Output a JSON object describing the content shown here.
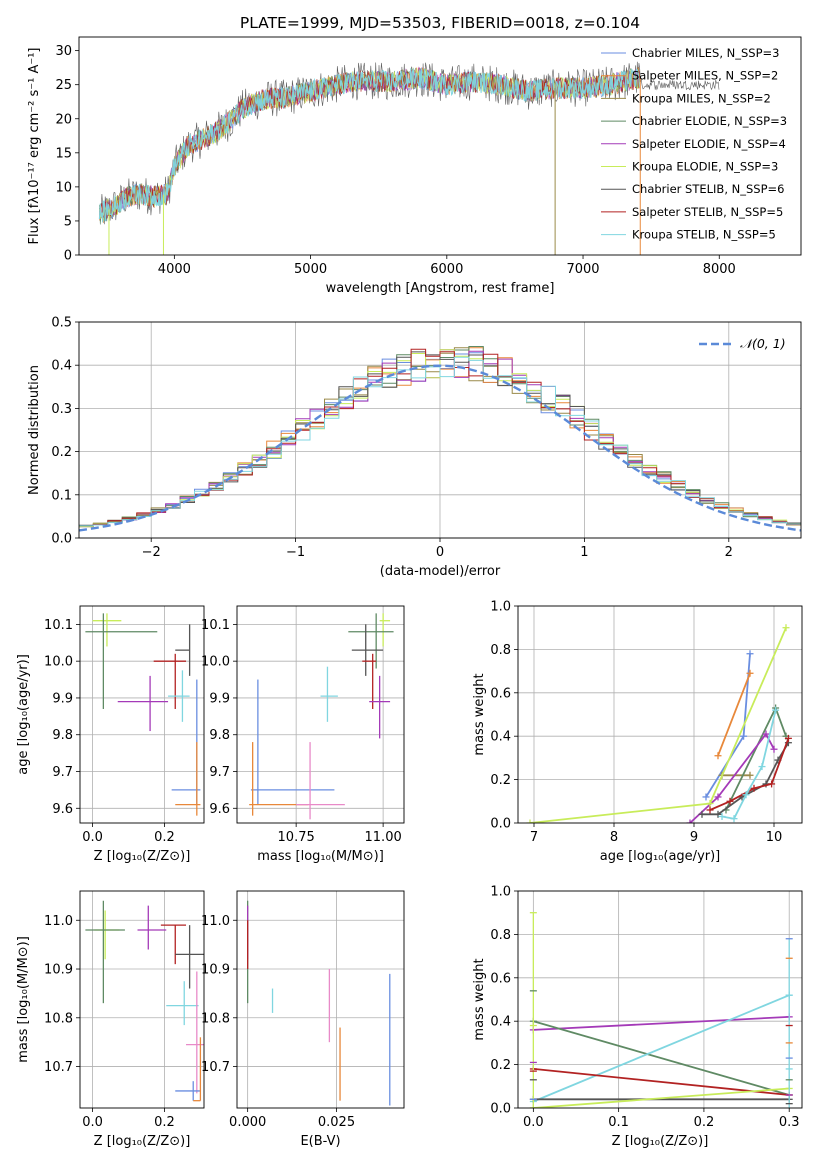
{
  "colors": {
    "chabrier_miles": "#6a8ee0",
    "salpeter_miles": "#e8883a",
    "kroupa_miles": "#9a8a4a",
    "chabrier_elodie": "#5f8a64",
    "salpeter_elodie": "#a43ab8",
    "kroupa_elodie": "#c8ec5a",
    "chabrier_stelib": "#555555",
    "salpeter_stelib": "#b22222",
    "kroupa_stelib": "#80d6e0",
    "normal": "#5b8ad8",
    "grid": "#b0b0b0",
    "extra_pink": "#e88ac8"
  },
  "chart_data": [
    {
      "id": "spectrum",
      "type": "line",
      "title": "PLATE=1999, MJD=53503, FIBERID=0018, z=0.104",
      "xlabel": "wavelength [Angstrom, rest frame]",
      "ylabel": "Flux [fλ10⁻¹⁷ erg cm⁻² s⁻¹ A⁻¹]",
      "xlim": [
        3300,
        8600
      ],
      "ylim": [
        0,
        32
      ],
      "xticks": [
        4000,
        5000,
        6000,
        7000,
        8000
      ],
      "yticks": [
        0,
        5,
        10,
        15,
        20,
        25,
        30
      ],
      "grid": false,
      "legend_position": "right",
      "legend": [
        "Chabrier MILES, N_SSP=3",
        "Salpeter MILES, N_SSP=2",
        "Kroupa MILES, N_SSP=2",
        "Chabrier ELODIE, N_SSP=3",
        "Salpeter ELODIE, N_SSP=4",
        "Kroupa ELODIE, N_SSP=3",
        "Chabrier STELIB, N_SSP=6",
        "Salpeter STELIB, N_SSP=5",
        "Kroupa STELIB, N_SSP=5"
      ],
      "continuum": {
        "x": [
          3450,
          3550,
          3650,
          3750,
          3850,
          3950,
          4000,
          4100,
          4200,
          4300,
          4400,
          4500,
          4600,
          4700,
          4800,
          4900,
          5000,
          5100,
          5200,
          5300,
          5400,
          5600,
          5800,
          6000,
          6200,
          6400,
          6600,
          6800,
          7000,
          7200,
          7400
        ],
        "y": [
          6,
          7,
          8.5,
          9,
          8.5,
          9,
          13,
          16,
          17,
          18,
          19.5,
          21.5,
          22.5,
          23,
          23,
          23.5,
          24,
          24.5,
          25,
          25.5,
          25.5,
          25.5,
          26,
          25,
          25.5,
          25,
          24,
          24.5,
          24.5,
          25,
          26
        ]
      },
      "spikes": [
        {
          "x": 3520,
          "y": 0
        },
        {
          "x": 3920,
          "y": 0
        },
        {
          "x": 6795,
          "y": 0
        },
        {
          "x": 7420,
          "y": 0
        }
      ]
    },
    {
      "id": "residual_histogram",
      "type": "line",
      "xlabel": "(data-model)/error",
      "ylabel": "Normed distribution",
      "xlim": [
        -2.5,
        2.5
      ],
      "ylim": [
        0,
        0.5
      ],
      "xticks": [
        -2,
        -1,
        0,
        1,
        2
      ],
      "xticklabels": [
        "−2",
        "−1",
        "0",
        "1",
        "2"
      ],
      "yticks": [
        0.0,
        0.1,
        0.2,
        0.3,
        0.4,
        0.5
      ],
      "grid": true,
      "legend": [
        "𝒩(0, 1)"
      ],
      "legend_position": "top-right",
      "bin_width": 0.1
    },
    {
      "id": "age_vs_Z",
      "type": "scatter",
      "xlabel": "Z [log₁₀(Z/Z⊙)]",
      "ylabel": "age  [log₁₀(age/yr)]",
      "xlim": [
        -0.035,
        0.31
      ],
      "ylim": [
        9.56,
        10.15
      ],
      "xticks": [
        0.0,
        0.2
      ],
      "yticks": [
        9.6,
        9.7,
        9.8,
        9.9,
        10.0,
        10.1
      ],
      "grid": true
    },
    {
      "id": "age_vs_mass",
      "type": "scatter",
      "xlabel": "mass [log₁₀(M/M⊙)]",
      "xlim": [
        10.58,
        11.06
      ],
      "ylim": [
        9.56,
        10.15
      ],
      "xticks": [
        10.75,
        11.0
      ],
      "yticks": [
        9.6,
        9.7,
        9.8,
        9.9,
        10.0,
        10.1
      ],
      "grid": true
    },
    {
      "id": "weight_vs_age",
      "type": "line",
      "xlabel": "age  [log₁₀(age/yr)]",
      "ylabel": "mass weight",
      "xlim": [
        6.8,
        10.35
      ],
      "ylim": [
        0,
        1
      ],
      "xticks": [
        7,
        8,
        9,
        10
      ],
      "yticks": [
        0.0,
        0.2,
        0.4,
        0.6,
        0.8,
        1.0
      ],
      "grid": true,
      "series": [
        {
          "name": "Chabrier MILES",
          "color_key": "chabrier_miles",
          "x": [
            9.15,
            9.62,
            9.7
          ],
          "y": [
            0.12,
            0.4,
            0.78
          ]
        },
        {
          "name": "Salpeter MILES",
          "color_key": "salpeter_miles",
          "x": [
            9.3,
            9.7
          ],
          "y": [
            0.31,
            0.69
          ]
        },
        {
          "name": "Kroupa MILES",
          "color_key": "kroupa_miles",
          "x": [
            9.35,
            9.7
          ],
          "y": [
            0.22,
            0.22
          ]
        },
        {
          "name": "Chabrier ELODIE",
          "color_key": "chabrier_elodie",
          "x": [
            9.4,
            10.02,
            10.15
          ],
          "y": [
            0.06,
            0.53,
            0.4
          ]
        },
        {
          "name": "Salpeter ELODIE",
          "color_key": "salpeter_elodie",
          "x": [
            8.95,
            9.3,
            9.9,
            10.0
          ],
          "y": [
            0.0,
            0.12,
            0.41,
            0.34
          ]
        },
        {
          "name": "Kroupa ELODIE",
          "color_key": "kroupa_elodie",
          "x": [
            6.95,
            9.2,
            10.15
          ],
          "y": [
            0.0,
            0.09,
            0.9
          ]
        },
        {
          "name": "Chabrier STELIB",
          "color_key": "chabrier_stelib",
          "x": [
            9.1,
            9.3,
            9.6,
            9.9,
            10.05,
            10.18
          ],
          "y": [
            0.04,
            0.04,
            0.12,
            0.18,
            0.29,
            0.37
          ]
        },
        {
          "name": "Salpeter STELIB",
          "color_key": "salpeter_stelib",
          "x": [
            9.2,
            9.45,
            9.75,
            9.97,
            10.18
          ],
          "y": [
            0.06,
            0.1,
            0.16,
            0.18,
            0.39
          ]
        },
        {
          "name": "Kroupa STELIB",
          "color_key": "kroupa_stelib",
          "x": [
            9.35,
            9.5,
            9.65,
            9.85,
            10.02
          ],
          "y": [
            0.03,
            0.02,
            0.13,
            0.26,
            0.52
          ]
        }
      ]
    },
    {
      "id": "mass_vs_Z",
      "type": "scatter",
      "xlabel": "Z [log₁₀(Z/Z⊙)]",
      "ylabel": "mass [log₁₀(M/M⊙)]",
      "xlim": [
        -0.035,
        0.31
      ],
      "ylim": [
        10.615,
        11.06
      ],
      "xticks": [
        0.0,
        0.2
      ],
      "yticks": [
        10.7,
        10.8,
        10.9,
        11.0
      ],
      "grid": true
    },
    {
      "id": "mass_vs_EBV",
      "type": "scatter",
      "xlabel": "E(B-V)",
      "xlim": [
        -0.003,
        0.044
      ],
      "ylim": [
        10.615,
        11.06
      ],
      "xticks": [
        0.0,
        0.025
      ],
      "xticklabels": [
        "0.000",
        "0.025"
      ],
      "yticks": [
        10.7,
        10.8,
        10.9,
        11.0
      ],
      "grid": true
    },
    {
      "id": "weight_vs_Z",
      "type": "line",
      "xlabel": "Z [log₁₀(Z/Z⊙)]",
      "ylabel": "mass weight",
      "xlim": [
        -0.018,
        0.315
      ],
      "ylim": [
        0,
        1
      ],
      "xticks": [
        0.0,
        0.1,
        0.2,
        0.3
      ],
      "yticks": [
        0.0,
        0.2,
        0.4,
        0.6,
        0.8,
        1.0
      ],
      "grid": true,
      "series": [
        {
          "name": "Salpeter ELODIE",
          "color_key": "salpeter_elodie",
          "x": [
            0.0,
            0.3
          ],
          "y": [
            0.36,
            0.42
          ]
        },
        {
          "name": "Chabrier ELODIE",
          "color_key": "chabrier_elodie",
          "x": [
            0.0,
            0.3
          ],
          "y": [
            0.4,
            0.06
          ]
        },
        {
          "name": "Kroupa STELIB",
          "color_key": "kroupa_stelib",
          "x": [
            0.0,
            0.3
          ],
          "y": [
            0.03,
            0.52
          ]
        },
        {
          "name": "Salpeter STELIB",
          "color_key": "salpeter_stelib",
          "x": [
            0.0,
            0.3
          ],
          "y": [
            0.18,
            0.06
          ]
        },
        {
          "name": "Chabrier STELIB",
          "color_key": "chabrier_stelib",
          "x": [
            0.0,
            0.3
          ],
          "y": [
            0.04,
            0.04
          ]
        },
        {
          "name": "Kroupa ELODIE",
          "color_key": "kroupa_elodie",
          "x": [
            0.0,
            0.3
          ],
          "y": [
            0.0,
            0.09
          ]
        }
      ]
    }
  ]
}
